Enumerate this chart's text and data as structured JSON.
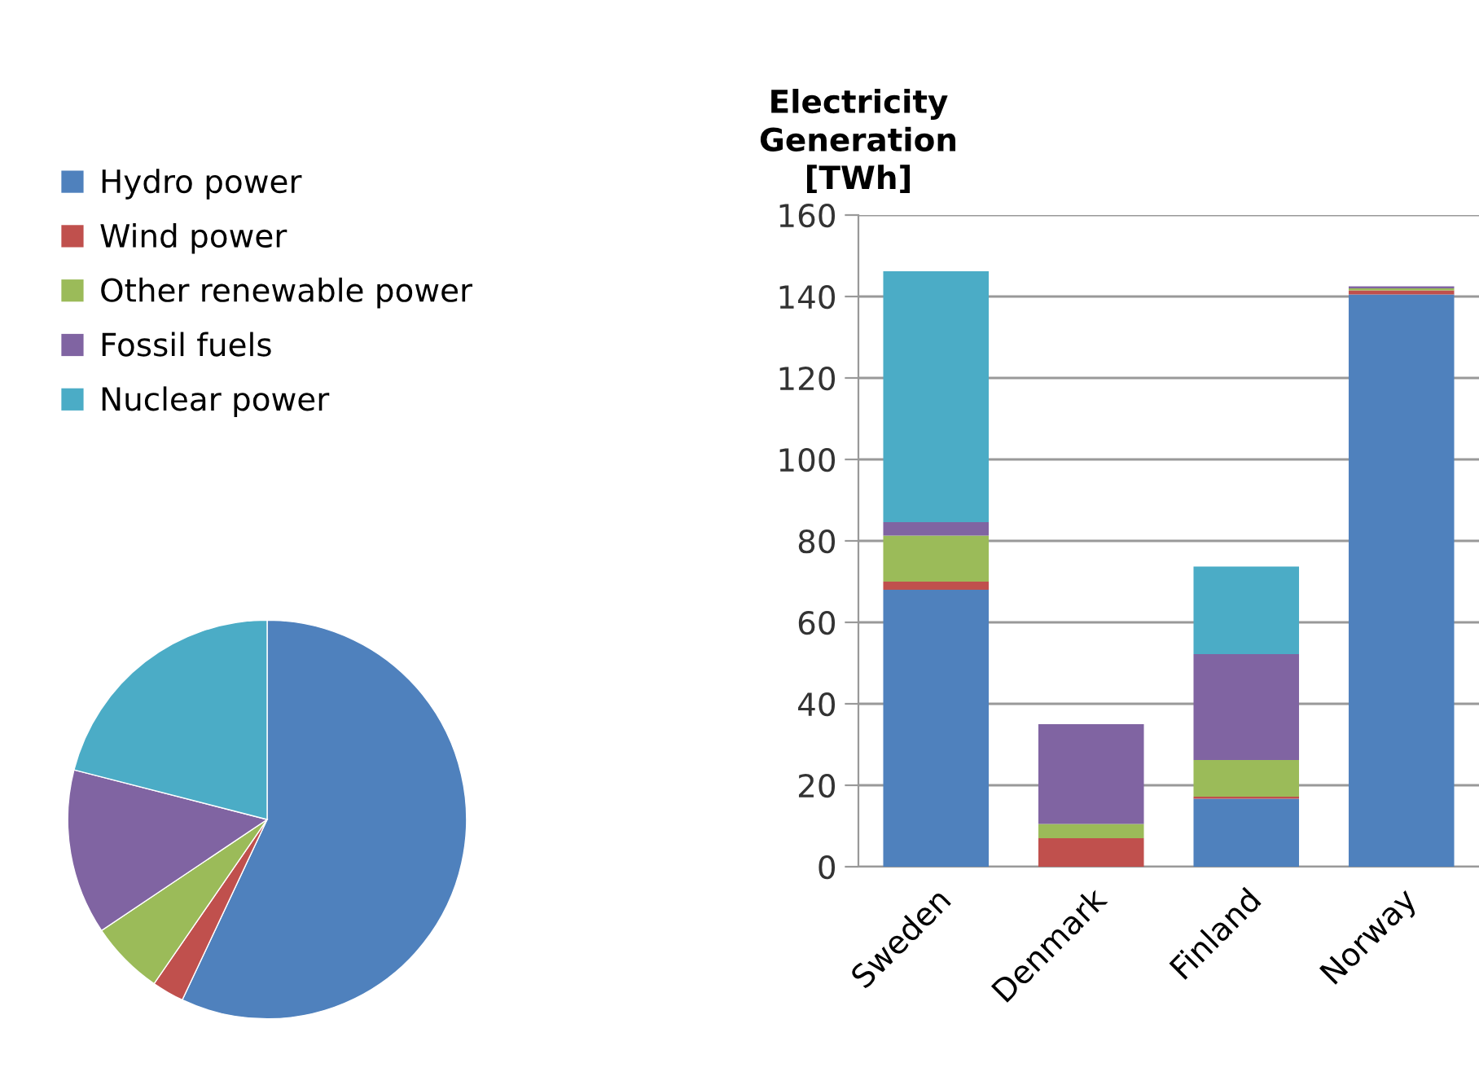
{
  "chart_data": [
    {
      "type": "pie",
      "categories": [
        "Hydro power",
        "Wind power",
        "Other renewable power",
        "Fossil fuels",
        "Nuclear power"
      ],
      "values": [
        57,
        2.6,
        6,
        13.4,
        21
      ],
      "colors": [
        "#4f81bd",
        "#c0504d",
        "#9bbb59",
        "#8064a2",
        "#4bacc6"
      ],
      "legend": "top"
    },
    {
      "type": "bar",
      "stacked": true,
      "title": "Electricity\nGeneration\n[TWh]",
      "categories": [
        "Sweden",
        "Denmark",
        "Finland",
        "Norway"
      ],
      "series": [
        {
          "color": "#4f81bd",
          "values": [
            68,
            0,
            16.7,
            140.5
          ]
        },
        {
          "color": "#c0504d",
          "values": [
            2,
            7,
            0.5,
            1
          ]
        },
        {
          "color": "#9bbb59",
          "values": [
            11.3,
            3.5,
            9,
            0.5
          ]
        },
        {
          "color": "#8064a2",
          "values": [
            3.3,
            24.5,
            26,
            0.5
          ]
        },
        {
          "color": "#4bacc6",
          "values": [
            61.6,
            0,
            21.5,
            0
          ]
        }
      ],
      "ylim": [
        0,
        160
      ],
      "yticks": [
        0,
        20,
        40,
        60,
        80,
        100,
        120,
        140,
        160
      ],
      "grid": "y"
    }
  ]
}
